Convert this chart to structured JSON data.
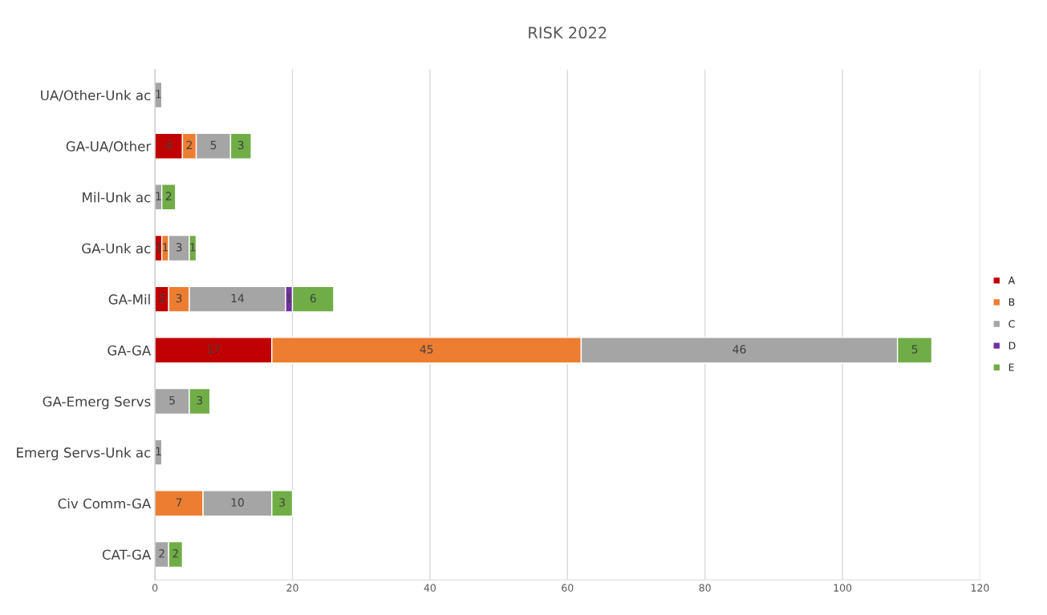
{
  "chart_data": {
    "type": "bar",
    "orientation": "horizontal",
    "stacked": true,
    "title": "RISK 2022",
    "categories": [
      "UA/Other-Unk ac",
      "GA-UA/Other",
      "Mil-Unk ac",
      "GA-Unk ac",
      "GA-Mil",
      "GA-GA",
      "GA-Emerg Servs",
      "Emerg Servs-Unk ac",
      "Civ Comm-GA",
      "CAT-GA"
    ],
    "series": [
      {
        "name": "A",
        "color": "#c00000",
        "values": [
          null,
          4,
          null,
          1,
          2,
          17,
          null,
          null,
          null,
          null
        ]
      },
      {
        "name": "B",
        "color": "#ed7d31",
        "values": [
          null,
          2,
          null,
          1,
          3,
          45,
          null,
          null,
          7,
          null
        ]
      },
      {
        "name": "C",
        "color": "#a5a5a5",
        "values": [
          1,
          5,
          1,
          3,
          14,
          46,
          5,
          1,
          10,
          2
        ]
      },
      {
        "name": "D",
        "color": "#7030a0",
        "values": [
          null,
          null,
          null,
          null,
          1,
          null,
          null,
          null,
          null,
          null
        ]
      },
      {
        "name": "E",
        "color": "#70ad47",
        "values": [
          null,
          3,
          2,
          1,
          6,
          5,
          3,
          null,
          3,
          2
        ]
      }
    ],
    "xlim": [
      0,
      120
    ],
    "xticks": [
      0,
      20,
      40,
      60,
      80,
      100,
      120
    ],
    "grid": "x",
    "legend": "right",
    "data_labels": true
  }
}
